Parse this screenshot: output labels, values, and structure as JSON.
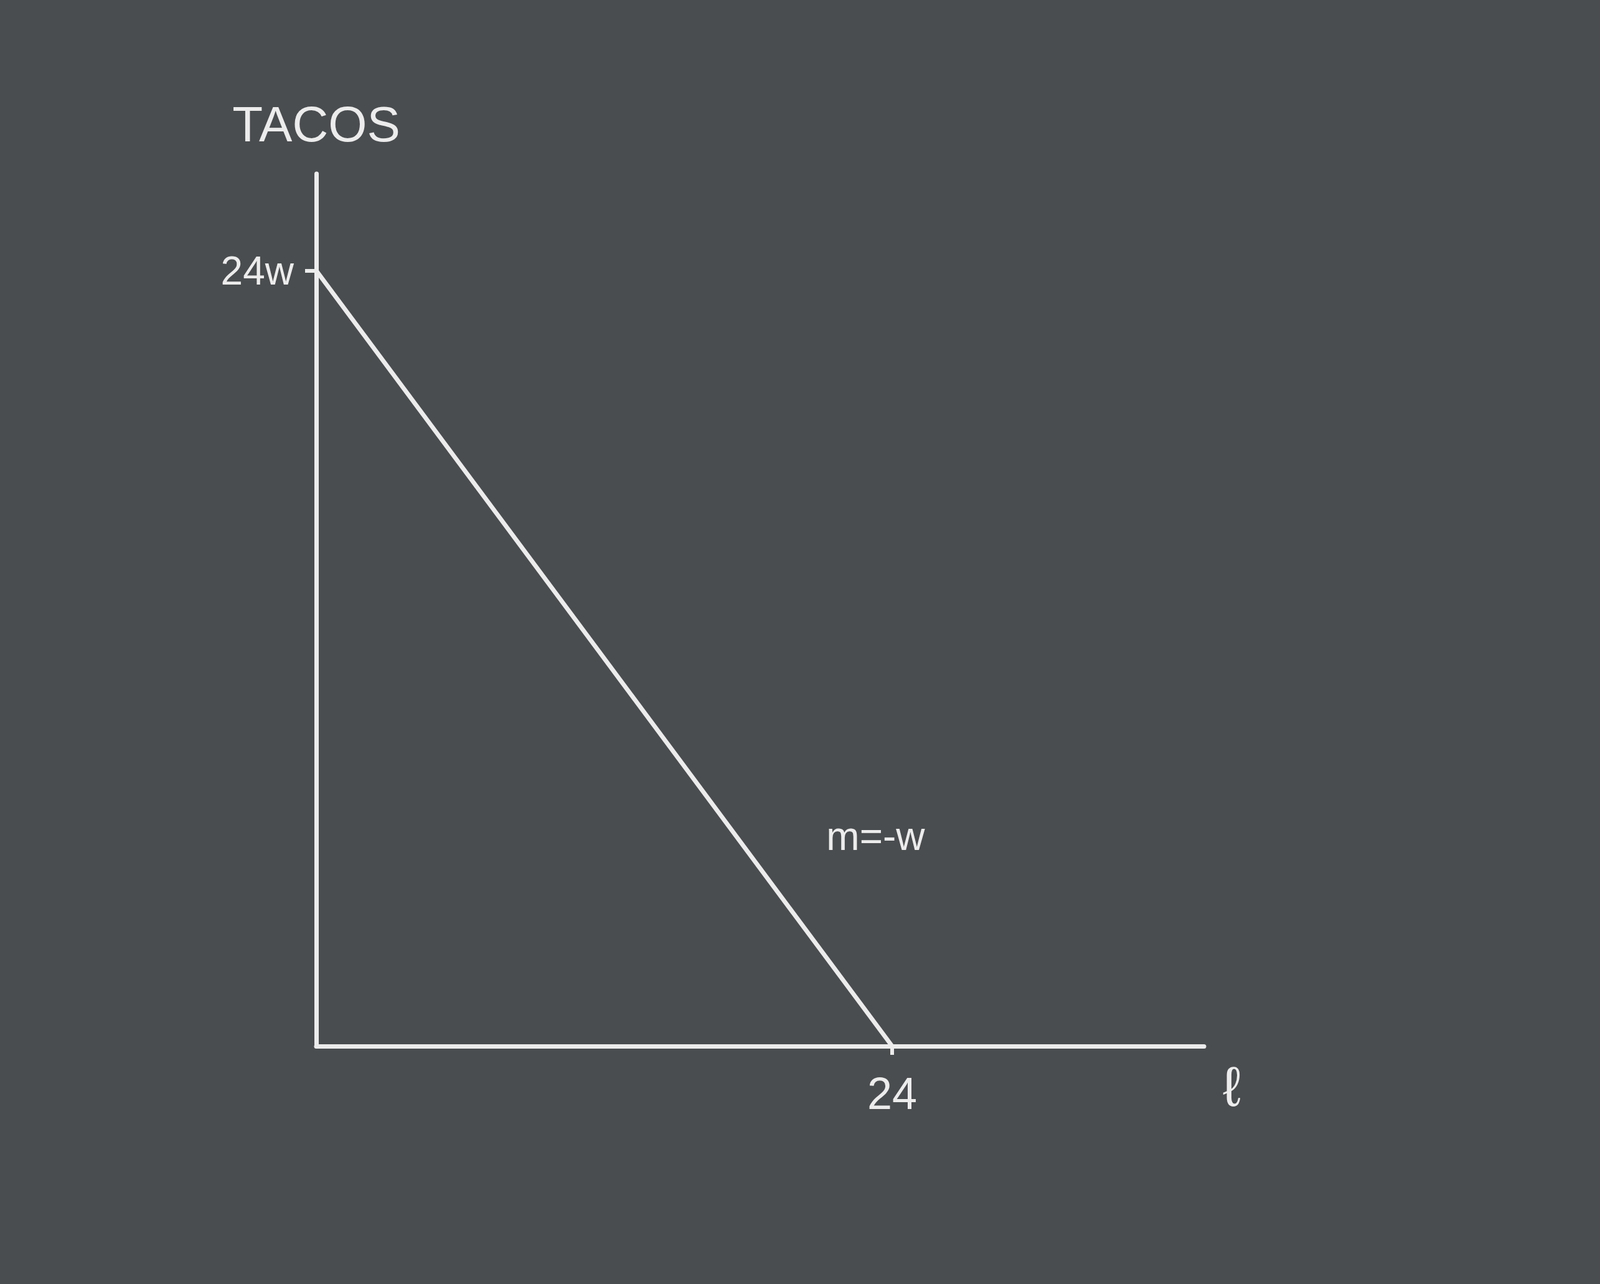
{
  "chart_data": {
    "type": "line",
    "x_label": "ℓ",
    "y_label": "TACOS",
    "x": [
      0,
      24
    ],
    "values": [
      24,
      0
    ],
    "color": "#ececec",
    "xlim": [
      0,
      37
    ],
    "ylim": [
      0,
      27
    ],
    "xticks": [
      24
    ],
    "yticks": [
      {
        "value": 24,
        "label": "24w"
      }
    ],
    "grid": false,
    "annotations": [
      {
        "text": "m=-w",
        "x": 21,
        "y": 6.5
      }
    ]
  }
}
